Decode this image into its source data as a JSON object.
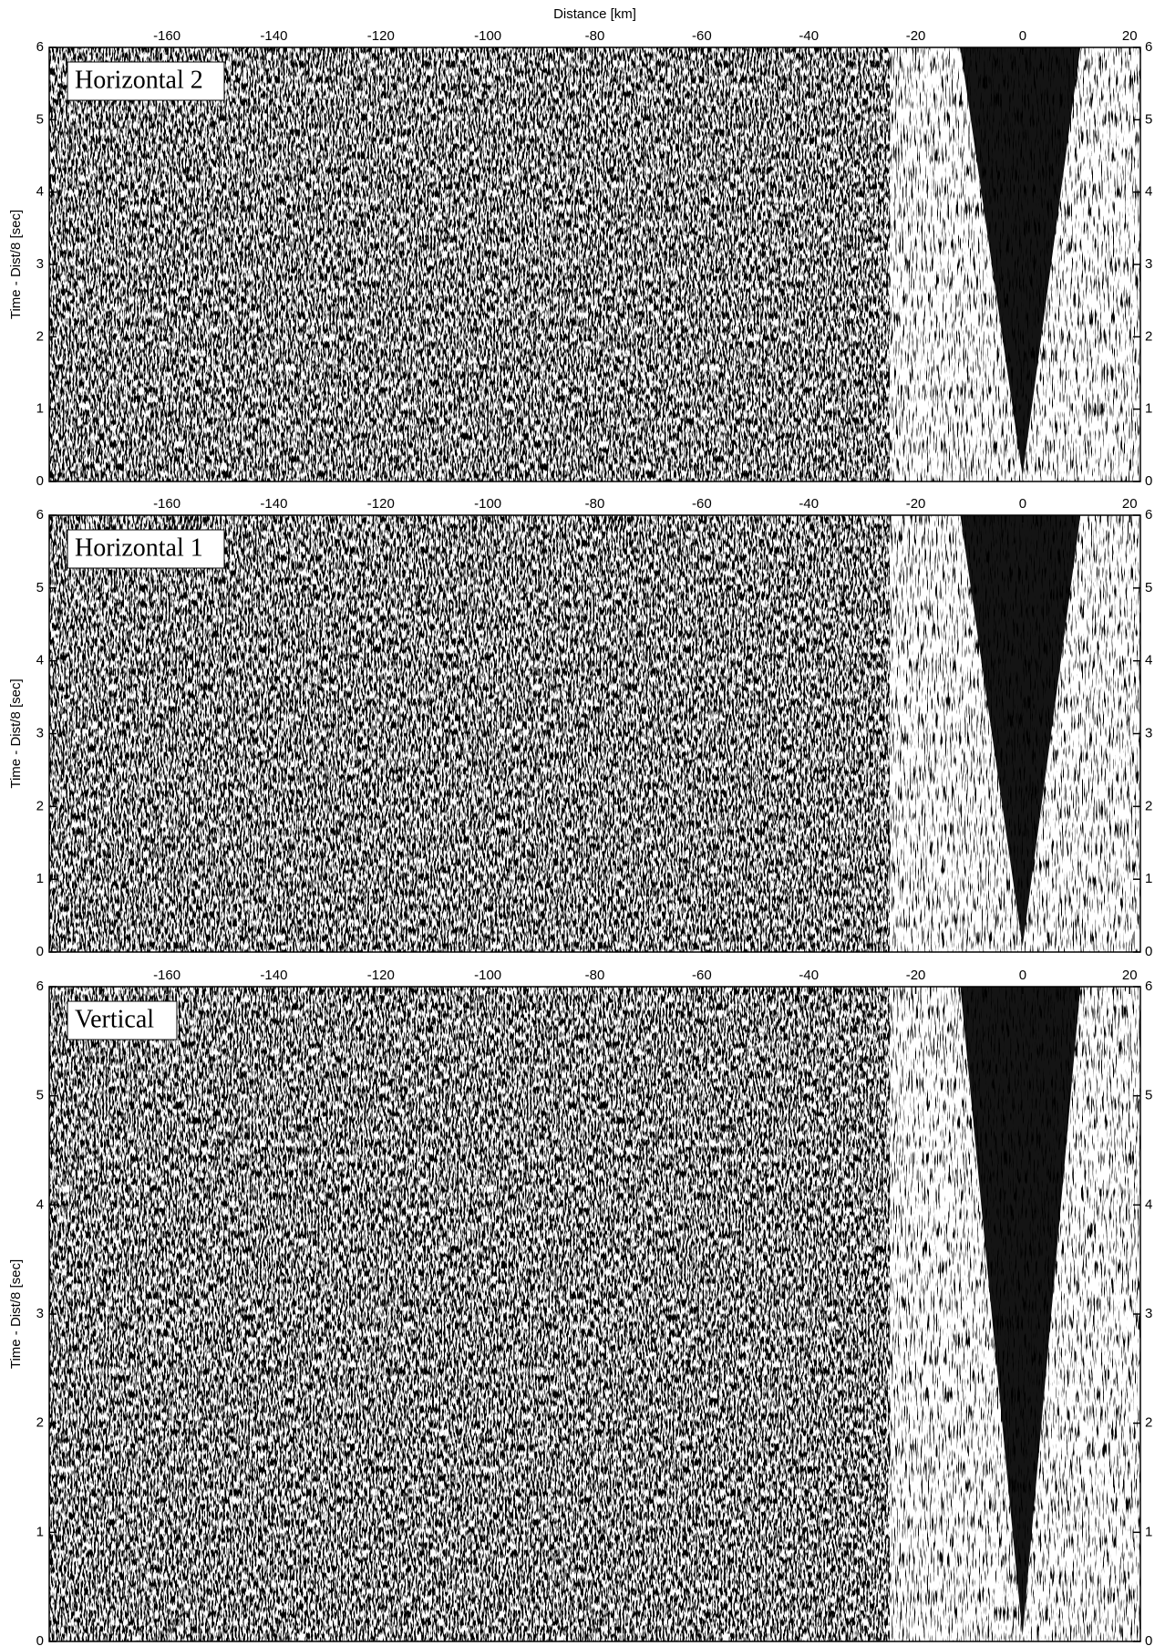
{
  "chart_data": [
    {
      "type": "seismic",
      "title": "Horizontal 2",
      "xlabel": "Distance [km]",
      "ylabel": "Time - Dist/8 [sec]",
      "xlim": [
        -182,
        22
      ],
      "ylim": [
        0,
        6
      ],
      "xticks": [
        -160,
        -140,
        -120,
        -100,
        -80,
        -60,
        -40,
        -20,
        0,
        20
      ],
      "yticks": [
        0,
        1,
        2,
        3,
        4,
        5,
        6
      ]
    },
    {
      "type": "seismic",
      "title": "Horizontal 1",
      "ylabel": "Time - Dist/8 [sec]",
      "xlim": [
        -182,
        22
      ],
      "ylim": [
        0,
        6
      ],
      "xticks": [
        -160,
        -140,
        -120,
        -100,
        -80,
        -60,
        -40,
        -20,
        0,
        20
      ],
      "yticks": [
        0,
        1,
        2,
        3,
        4,
        5,
        6
      ]
    },
    {
      "type": "seismic",
      "title": "Vertical",
      "ylabel": "Time - Dist/8 [sec]",
      "xlim": [
        -182,
        22
      ],
      "ylim": [
        0,
        6
      ],
      "xticks": [
        -160,
        -140,
        -120,
        -100,
        -80,
        -60,
        -40,
        -20,
        0,
        20
      ],
      "yticks": [
        0,
        1,
        2,
        3,
        4,
        5,
        6
      ]
    }
  ]
}
